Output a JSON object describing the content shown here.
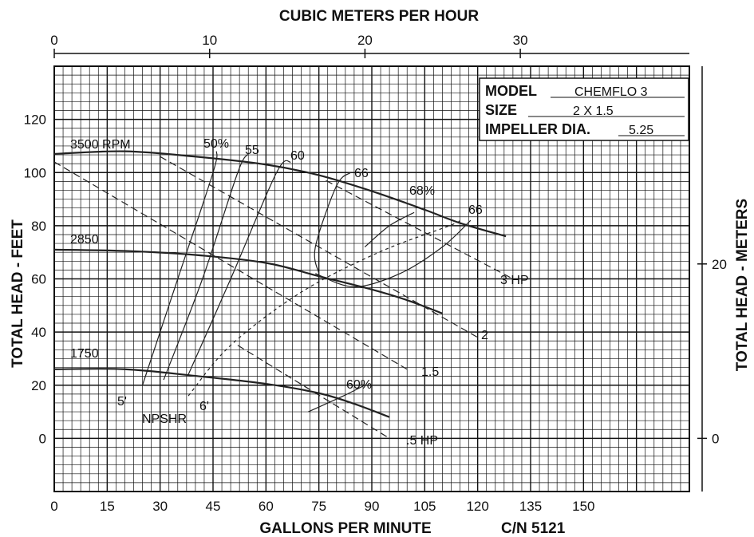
{
  "chart_data": {
    "type": "line",
    "title": "",
    "top_axis": {
      "label": "CUBIC METERS PER HOUR",
      "ticks": [
        0,
        10,
        20,
        30
      ],
      "unit": "m3/h"
    },
    "x_axis": {
      "label": "GALLONS PER MINUTE",
      "ticks": [
        0,
        15,
        30,
        45,
        60,
        75,
        90,
        105,
        120,
        135,
        150
      ],
      "range": [
        0,
        180
      ]
    },
    "y_axis_left": {
      "label": "TOTAL HEAD - FEET",
      "ticks": [
        0,
        20,
        40,
        60,
        80,
        100,
        120
      ],
      "range": [
        -20,
        140
      ]
    },
    "y_axis_right": {
      "label": "TOTAL HEAD - METERS",
      "ticks": [
        0,
        20
      ]
    },
    "code_label": "C/N 5121",
    "info_box": {
      "rows": [
        {
          "label": "MODEL",
          "value": "CHEMFLO 3"
        },
        {
          "label": "SIZE",
          "value": "2 X 1.5"
        },
        {
          "label": "IMPELLER DIA.",
          "value": "5.25"
        }
      ]
    },
    "grid": true,
    "speed_curves": [
      {
        "name": "3500 RPM",
        "points": [
          [
            0,
            107
          ],
          [
            20,
            108
          ],
          [
            40,
            106
          ],
          [
            60,
            103
          ],
          [
            75,
            99
          ],
          [
            90,
            93
          ],
          [
            105,
            86
          ],
          [
            115,
            81
          ],
          [
            128,
            76
          ]
        ]
      },
      {
        "name": "2850",
        "points": [
          [
            0,
            71
          ],
          [
            20,
            70.5
          ],
          [
            40,
            69
          ],
          [
            60,
            66
          ],
          [
            75,
            61
          ],
          [
            90,
            56
          ],
          [
            100,
            52
          ],
          [
            110,
            47
          ]
        ]
      },
      {
        "name": "1750",
        "points": [
          [
            0,
            26
          ],
          [
            20,
            26
          ],
          [
            40,
            23.5
          ],
          [
            60,
            20.5
          ],
          [
            75,
            17
          ],
          [
            85,
            13
          ],
          [
            95,
            8
          ]
        ]
      }
    ],
    "efficiency_labels": [
      "50%",
      "55",
      "60",
      "66",
      "68%",
      "66",
      "60%"
    ],
    "efficiency_curves": [
      {
        "label": "50%",
        "points": [
          [
            25,
            20
          ],
          [
            35,
            60
          ],
          [
            45,
            100
          ],
          [
            46,
            108
          ]
        ]
      },
      {
        "label": "55",
        "points": [
          [
            31,
            22
          ],
          [
            42,
            60
          ],
          [
            52,
            100
          ],
          [
            55,
            107
          ]
        ]
      },
      {
        "label": "60",
        "points": [
          [
            38,
            24
          ],
          [
            50,
            60
          ],
          [
            63,
            100
          ],
          [
            67,
            104
          ]
        ]
      },
      {
        "label": "66",
        "points": [
          [
            75,
            62
          ],
          [
            74,
            72
          ],
          [
            80,
            95
          ],
          [
            84,
            100
          ]
        ]
      },
      {
        "label": "68%",
        "points": [
          [
            88,
            72
          ],
          [
            95,
            80
          ],
          [
            102,
            85
          ]
        ]
      },
      {
        "label": "66",
        "points": [
          [
            74,
            62
          ],
          [
            85,
            57
          ],
          [
            98,
            62
          ],
          [
            110,
            72
          ],
          [
            118,
            82
          ]
        ]
      },
      {
        "label": "60%",
        "points": [
          [
            72,
            10
          ],
          [
            82,
            16
          ],
          [
            88,
            20
          ]
        ]
      }
    ],
    "power_lines": [
      {
        "label": "3 HP",
        "points": [
          [
            77,
            97
          ],
          [
            130,
            60
          ]
        ]
      },
      {
        "label": "2",
        "points": [
          [
            30,
            106
          ],
          [
            120,
            38
          ]
        ]
      },
      {
        "label": "1.5",
        "points": [
          [
            0,
            104
          ],
          [
            100,
            26
          ]
        ]
      },
      {
        "label": ".5 HP",
        "points": [
          [
            52,
            35
          ],
          [
            95,
            0
          ]
        ]
      }
    ],
    "npshr": {
      "label": "NPSHR",
      "values": [
        "5'",
        "6'"
      ],
      "points": [
        [
          38,
          16
        ],
        [
          50,
          35
        ],
        [
          70,
          55
        ],
        [
          92,
          70
        ],
        [
          112,
          80
        ],
        [
          115,
          82
        ]
      ]
    }
  }
}
